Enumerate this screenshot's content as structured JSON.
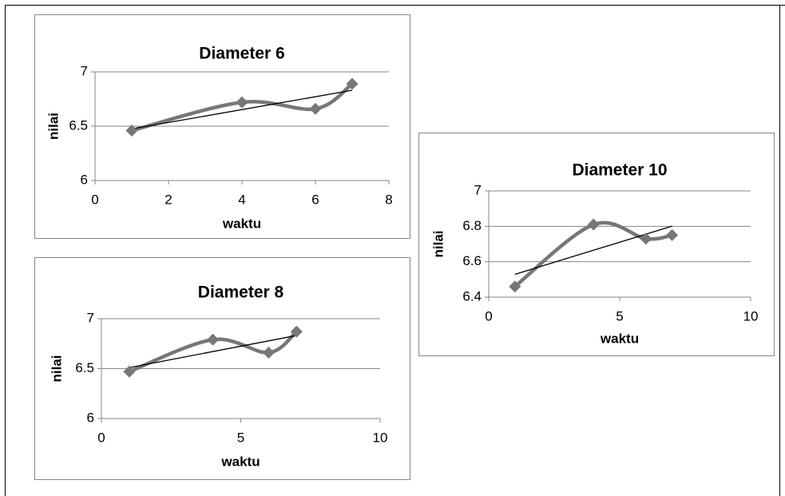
{
  "chart_data": [
    {
      "type": "line",
      "title": "Diameter 6",
      "x_label": "waktu",
      "y_label": "nilai",
      "x": [
        1,
        4,
        6,
        7
      ],
      "series": [
        {
          "name": "nilai",
          "color": "#777777",
          "values": [
            6.46,
            6.72,
            6.66,
            6.89
          ]
        }
      ],
      "xlim": [
        0,
        8
      ],
      "xticks": [
        0,
        2,
        4,
        6,
        8
      ],
      "ylim": [
        6,
        7
      ],
      "yticks": [
        6,
        6.5,
        7
      ],
      "grid": true,
      "smooth": true,
      "marker": "diamond",
      "trendline": "linear"
    },
    {
      "type": "line",
      "title": "Diameter 8",
      "x_label": "waktu",
      "y_label": "nilai",
      "x": [
        1,
        4,
        6,
        7
      ],
      "series": [
        {
          "name": "nilai",
          "color": "#777777",
          "values": [
            6.47,
            6.79,
            6.66,
            6.87
          ]
        }
      ],
      "xlim": [
        0,
        10
      ],
      "xticks": [
        0,
        5,
        10
      ],
      "ylim": [
        6,
        7
      ],
      "yticks": [
        6,
        6.5,
        7
      ],
      "grid": true,
      "smooth": true,
      "marker": "diamond",
      "trendline": "linear"
    },
    {
      "type": "line",
      "title": "Diameter 10",
      "x_label": "waktu",
      "y_label": "nilai",
      "x": [
        1,
        4,
        6,
        7
      ],
      "series": [
        {
          "name": "nilai",
          "color": "#777777",
          "values": [
            6.46,
            6.81,
            6.73,
            6.75
          ]
        }
      ],
      "xlim": [
        0,
        10
      ],
      "xticks": [
        0,
        5,
        10
      ],
      "ylim": [
        6.4,
        7
      ],
      "yticks": [
        6.4,
        6.6,
        6.8,
        7
      ],
      "grid": true,
      "smooth": true,
      "marker": "diamond",
      "trendline": "linear"
    }
  ]
}
